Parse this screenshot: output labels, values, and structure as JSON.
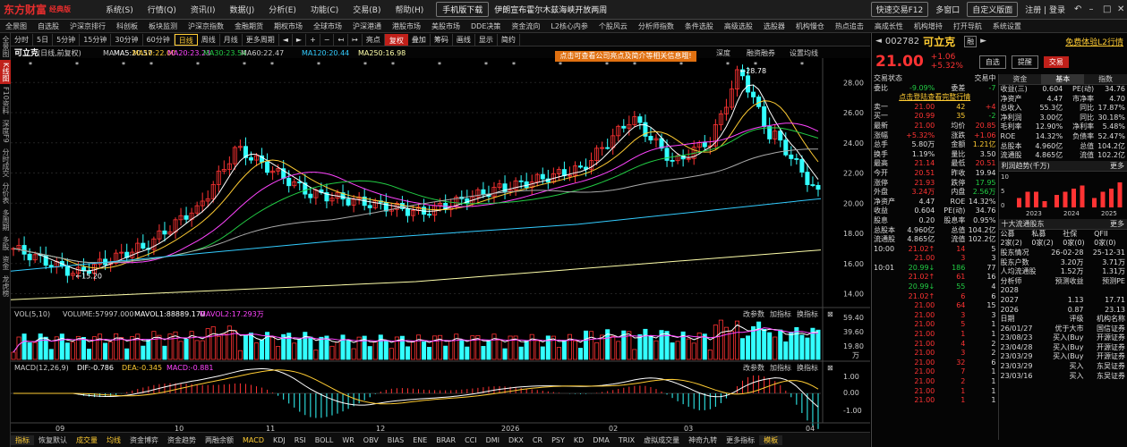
{
  "app": {
    "logo": "东方财富",
    "edition": "经典版"
  },
  "menu": [
    "系统(S)",
    "行情(Q)",
    "资讯(I)",
    "数据(J)",
    "分析(E)",
    "功能(C)",
    "交易(B)",
    "帮助(H)"
  ],
  "promo": {
    "button": "手机版下载",
    "news": "伊朗宣布霍尔木兹海峡开放两周"
  },
  "topright": {
    "quicktrade": "快速交易F12",
    "multiscreen": "多窗口",
    "custom": "自定义版面",
    "login": "注册 | 登录"
  },
  "navbar": [
    "全景图",
    "自选股",
    "沪深京排行",
    "科创板",
    "板块监测",
    "沪深京指数",
    "金融期货",
    "期权市场",
    "全球市场",
    "沪深港通",
    "港股市场",
    "美股市场",
    "DDE决策",
    "资金流向",
    "L2核心内参",
    "个股风云",
    "分析师指数",
    "条件选股",
    "高级选股",
    "选股器",
    "机构慢仓",
    "热点追击",
    "高成长性",
    "机构增持",
    "打开导航",
    "系统设置"
  ],
  "leftside": [
    "全景图",
    "K线图",
    "F10资料",
    "深度F9",
    "分时成交",
    "分价表",
    "多周期",
    "多股",
    "资金",
    "龙虎榜"
  ],
  "periods": [
    "分时",
    "5日",
    "5分钟",
    "15分钟",
    "30分钟",
    "60分钟",
    "日线",
    "周线",
    "月线",
    "更多周期"
  ],
  "tools": {
    "highlight": "亮点",
    "adjust": "复权",
    "overlay": "叠加",
    "chips": "筹码",
    "draw": "画线",
    "display": "显示",
    "about": "简约"
  },
  "chart": {
    "title": "可立克",
    "adjust_label": "(日线,前复权)",
    "ma_labels": [
      {
        "text": "MA",
        "color": "#cccccc"
      },
      {
        "text": "MA5:20.57",
        "color": "#ffffff"
      },
      {
        "text": "MA10:22.00",
        "color": "#ffcc33"
      },
      {
        "text": "MA20:23.23",
        "color": "#ff44ff"
      },
      {
        "text": "MA30:23.54",
        "color": "#22cc44"
      },
      {
        "text": "MA60:22.47",
        "color": "#cccccc"
      },
      {
        "text": "MA120:20.44",
        "color": "#33ccff"
      },
      {
        "text": "MA250:16.98",
        "color": "#ffffaa"
      }
    ],
    "right_tabs": [
      "深度",
      "融资融券",
      "设置均线"
    ],
    "banner": "点击可查看公司亮点及简介等相关信息哦!",
    "max_label": "28.78",
    "min_label": "15.20",
    "y_ticks": [
      "28.00",
      "26.00",
      "24.00",
      "22.00",
      "20.00",
      "18.00",
      "16.00",
      "14.00"
    ],
    "vol_title": "VOL(5,10)",
    "vol_labels": [
      {
        "text": "VOLUME:57997.000",
        "color": "#cccccc"
      },
      {
        "text": "MAVOL1:88889.170",
        "color": "#ffffff"
      },
      {
        "text": "MAVOL2:17.293万",
        "color": "#ff44ff"
      }
    ],
    "vol_ticks": [
      "59.40",
      "39.60",
      "19.80"
    ],
    "vol_unit": "万",
    "macd_title": "MACD(12,26,9)",
    "macd_labels": [
      {
        "text": "DIF:-0.786",
        "color": "#ffffff"
      },
      {
        "text": "DEA:-0.345",
        "color": "#ffcc33"
      },
      {
        "text": "MACD:-0.881",
        "color": "#ff44ff"
      }
    ],
    "macd_ticks": [
      "1.00",
      "0.00",
      "-1.00"
    ],
    "sub_tools": [
      "改参数",
      "加指标",
      "换指标"
    ],
    "x_ticks": [
      "09",
      "10",
      "11",
      "12",
      "2026",
      "02",
      "03",
      "04"
    ]
  },
  "bottombar": [
    "指标",
    "恢复默认",
    "成交量",
    "均线",
    "资金博弈",
    "资金趋势",
    "两融余额",
    "MACD",
    "KDJ",
    "RSI",
    "BOLL",
    "WR",
    "OBV",
    "BIAS",
    "ENE",
    "BRAR",
    "CCI",
    "DMI",
    "DKX",
    "CR",
    "PSY",
    "KD",
    "DMA",
    "TRIX",
    "虚拟成交量",
    "神奇九转",
    "更多指标",
    "模板"
  ],
  "quote": {
    "code": "002782",
    "name": "可立克",
    "flag": "融",
    "trial": "免费体验L2行情",
    "price": "21.00",
    "change": "+1.06",
    "pct": "+5.32%",
    "btn_watch": "自选",
    "btn_alert": "提醒",
    "btn_trade": "交易"
  },
  "status": {
    "label": "交易状态",
    "value": "交易中"
  },
  "weibi": {
    "l1": "委比",
    "v1": "-9.09%",
    "l2": "委差",
    "v2": "-7"
  },
  "depth_link": "点击登陆查看完整行情",
  "orderbook": [
    {
      "side": "卖一",
      "price": "21.00",
      "vol": "42",
      "chg": "+4"
    },
    {
      "side": "买一",
      "price": "20.99",
      "vol": "35",
      "chg": "-2"
    }
  ],
  "stats": [
    [
      "最新",
      "21.00",
      "均价",
      "20.85"
    ],
    [
      "涨幅",
      "+5.32%",
      "涨跌",
      "+1.06"
    ],
    [
      "总手",
      "5.80万",
      "金额",
      "1.21亿"
    ],
    [
      "换手",
      "1.19%",
      "量比",
      "3.50"
    ],
    [
      "最高",
      "21.14",
      "最低",
      "20.51"
    ],
    [
      "今开",
      "20.51",
      "昨收",
      "19.94"
    ],
    [
      "涨停",
      "21.93",
      "跌停",
      "17.95"
    ],
    [
      "外盘",
      "3.24万",
      "内盘",
      "2.56万"
    ],
    [
      "净资产",
      "4.47",
      "ROE",
      "14.32%"
    ],
    [
      "收益",
      "0.604",
      "PE(动)",
      "34.76"
    ],
    [
      "股息",
      "0.20",
      "股息率",
      "0.95%"
    ],
    [
      "总股本",
      "4.960亿",
      "总值",
      "104.2亿"
    ],
    [
      "流通股",
      "4.865亿",
      "流值",
      "102.2亿"
    ]
  ],
  "ticks": [
    [
      "10:00",
      "21.02",
      "14",
      "5"
    ],
    [
      "",
      "21.00",
      "3",
      "3"
    ],
    [
      "10:01",
      "20.99",
      "186",
      "77"
    ],
    [
      "",
      "21.02",
      "61",
      "16"
    ],
    [
      "",
      "20.99",
      "55",
      "4"
    ],
    [
      "",
      "21.02",
      "6",
      "6"
    ],
    [
      "",
      "21.00",
      "64",
      "15"
    ],
    [
      "",
      "21.00",
      "3",
      "3"
    ],
    [
      "",
      "21.00",
      "5",
      "1"
    ],
    [
      "",
      "21.00",
      "1",
      "1"
    ],
    [
      "",
      "21.00",
      "4",
      "2"
    ],
    [
      "",
      "21.00",
      "3",
      "2"
    ],
    [
      "",
      "21.00",
      "32",
      "6"
    ],
    [
      "",
      "21.00",
      "7",
      "1"
    ],
    [
      "",
      "21.00",
      "2",
      "1"
    ],
    [
      "",
      "21.00",
      "1",
      "1"
    ],
    [
      "",
      "21.00",
      "1",
      "1"
    ]
  ],
  "rtabs": [
    "资金",
    "基本",
    "指数"
  ],
  "fundamentals": [
    [
      "收益(三)",
      "0.604",
      "PE(动)",
      "34.76"
    ],
    [
      "净资产",
      "4.47",
      "市净率",
      "4.70"
    ],
    [
      "总收入",
      "55.3亿",
      "同比",
      "17.87%"
    ],
    [
      "净利润",
      "3.00亿",
      "同比",
      "30.18%"
    ],
    [
      "毛利率",
      "12.90%",
      "净利率",
      "5.48%"
    ],
    [
      "ROE",
      "14.32%",
      "负债率",
      "52.47%"
    ],
    [
      "总股本",
      "4.960亿",
      "总值",
      "104.2亿"
    ],
    [
      "流通股",
      "4.865亿",
      "流值",
      "102.2亿"
    ]
  ],
  "profit_chart": {
    "title": "利润趋势(千万)",
    "more": "更多",
    "years": [
      "2023",
      "2024",
      "2025"
    ],
    "y_ticks": [
      "10",
      "5",
      "0"
    ]
  },
  "holders": {
    "title": "十大流通股东",
    "more": "更多"
  },
  "holder_head": [
    "公募",
    "私募",
    "社保",
    "QFII"
  ],
  "holder_vals": [
    "2家(2)",
    "0家(2)",
    "0家(0)",
    "0家(0)"
  ],
  "holder_rows": [
    [
      "股东情况",
      "26-02-28",
      "25-12-31"
    ],
    [
      "股东户数",
      "3.20万",
      "3.71万"
    ],
    [
      "人均流通股",
      "1.52万",
      "1.31万"
    ]
  ],
  "forecast": {
    "title": "分析师",
    "h2": "预测收益",
    "h3": "预测PE"
  },
  "forecast_rows": [
    [
      "2028",
      "",
      ""
    ],
    [
      "2027",
      "1.13",
      "17.71"
    ],
    [
      "2026",
      "0.87",
      "23.13"
    ]
  ],
  "ratings": {
    "h1": "日期",
    "h2": "评级",
    "h3": "机构名称"
  },
  "rating_rows": [
    [
      "26/01/27",
      "优于大市",
      "国信证券"
    ],
    [
      "23/08/23",
      "买入(Buy",
      "开源证券"
    ],
    [
      "23/04/28",
      "买入(Buy",
      "开源证券"
    ],
    [
      "23/03/29",
      "买入(Buy",
      "开源证券"
    ],
    [
      "23/03/29",
      "买入",
      "东吴证券"
    ],
    [
      "23/03/16",
      "买入",
      "东吴证券"
    ]
  ]
}
